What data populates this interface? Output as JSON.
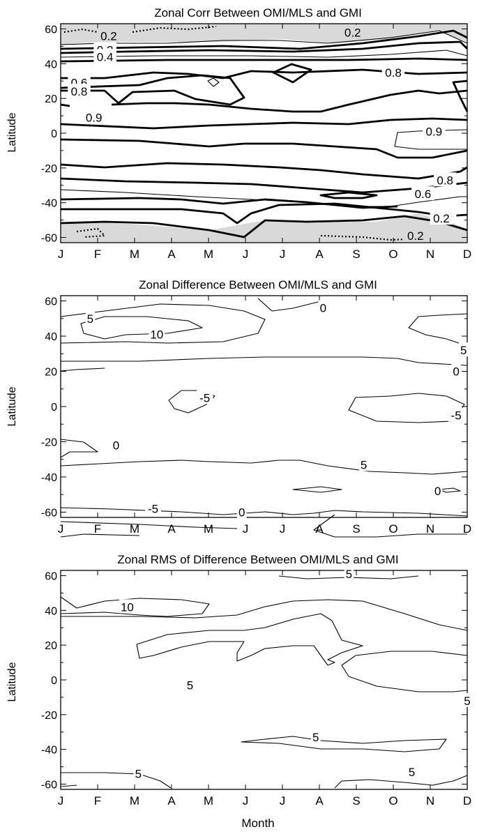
{
  "chart_data": [
    {
      "type": "contour",
      "title": "Zonal Corr Between OMI/MLS and GMI",
      "xlabel": "",
      "ylabel": "Latitude",
      "x_ticks": [
        "J",
        "F",
        "M",
        "A",
        "M",
        "J",
        "J",
        "A",
        "S",
        "O",
        "N",
        "D"
      ],
      "y_ticks": [
        60,
        40,
        20,
        0,
        -20,
        -40,
        -60
      ],
      "ylim": [
        -63,
        63
      ],
      "contour_labels": [
        {
          "text": "0.2",
          "month": 1.3,
          "lat": 56
        },
        {
          "text": "0.2",
          "month": 7.9,
          "lat": 58
        },
        {
          "text": "0.2",
          "month": 1.2,
          "lat": 48
        },
        {
          "text": "0.4",
          "month": 1.2,
          "lat": 44
        },
        {
          "text": "0.8",
          "month": 9.0,
          "lat": 35
        },
        {
          "text": "0.6",
          "month": 0.5,
          "lat": 29
        },
        {
          "text": "0.8",
          "month": 0.5,
          "lat": 24
        },
        {
          "text": "0.9",
          "month": 0.9,
          "lat": 9
        },
        {
          "text": "0.9",
          "month": 10.1,
          "lat": 1
        },
        {
          "text": "0.8",
          "month": 10.4,
          "lat": -27
        },
        {
          "text": "0.6",
          "month": 9.8,
          "lat": -35
        },
        {
          "text": "0.4",
          "month": 10.4,
          "lat": -47
        },
        {
          "text": "0.2",
          "month": 10.3,
          "lat": -49
        },
        {
          "text": "0.2",
          "month": 9.6,
          "lat": -59
        }
      ]
    },
    {
      "type": "contour",
      "title": "Zonal Difference Between OMI/MLS and GMI",
      "xlabel": "",
      "ylabel": "Latitude",
      "x_ticks": [
        "J",
        "F",
        "M",
        "A",
        "M",
        "J",
        "J",
        "A",
        "S",
        "O",
        "N",
        "D"
      ],
      "y_ticks": [
        60,
        40,
        20,
        0,
        -20,
        -40,
        -60
      ],
      "ylim": [
        -63,
        63
      ],
      "contour_labels": [
        {
          "text": "5",
          "month": 0.8,
          "lat": 50
        },
        {
          "text": "10",
          "month": 2.6,
          "lat": 41
        },
        {
          "text": "0",
          "month": 7.1,
          "lat": 56
        },
        {
          "text": "5",
          "month": 10.9,
          "lat": 32
        },
        {
          "text": "0",
          "month": 10.7,
          "lat": 20
        },
        {
          "text": "-5",
          "month": 3.9,
          "lat": 5
        },
        {
          "text": "-5",
          "month": 10.7,
          "lat": -5
        },
        {
          "text": "0",
          "month": 1.5,
          "lat": -22
        },
        {
          "text": "5",
          "month": 8.2,
          "lat": -33
        },
        {
          "text": "0",
          "month": 10.2,
          "lat": -48
        },
        {
          "text": "-5",
          "month": 2.5,
          "lat": -58
        },
        {
          "text": "0",
          "month": 4.9,
          "lat": -60
        }
      ]
    },
    {
      "type": "contour",
      "title": "Zonal RMS of Difference Between OMI/MLS and GMI",
      "xlabel": "Month",
      "ylabel": "Latitude",
      "x_ticks": [
        "J",
        "F",
        "M",
        "A",
        "M",
        "J",
        "J",
        "A",
        "S",
        "O",
        "N",
        "D"
      ],
      "y_ticks": [
        60,
        40,
        20,
        0,
        -20,
        -40,
        -60
      ],
      "ylim": [
        -63,
        63
      ],
      "contour_labels": [
        {
          "text": "5",
          "month": 7.8,
          "lat": 61
        },
        {
          "text": "10",
          "month": 1.8,
          "lat": 42
        },
        {
          "text": "5",
          "month": 11.4,
          "lat": 30
        },
        {
          "text": "5",
          "month": 3.5,
          "lat": -3
        },
        {
          "text": "5",
          "month": 11.0,
          "lat": -12
        },
        {
          "text": "5",
          "month": 6.9,
          "lat": -33
        },
        {
          "text": "5",
          "month": 2.1,
          "lat": -54
        },
        {
          "text": "5",
          "month": 9.5,
          "lat": -53
        }
      ]
    }
  ]
}
